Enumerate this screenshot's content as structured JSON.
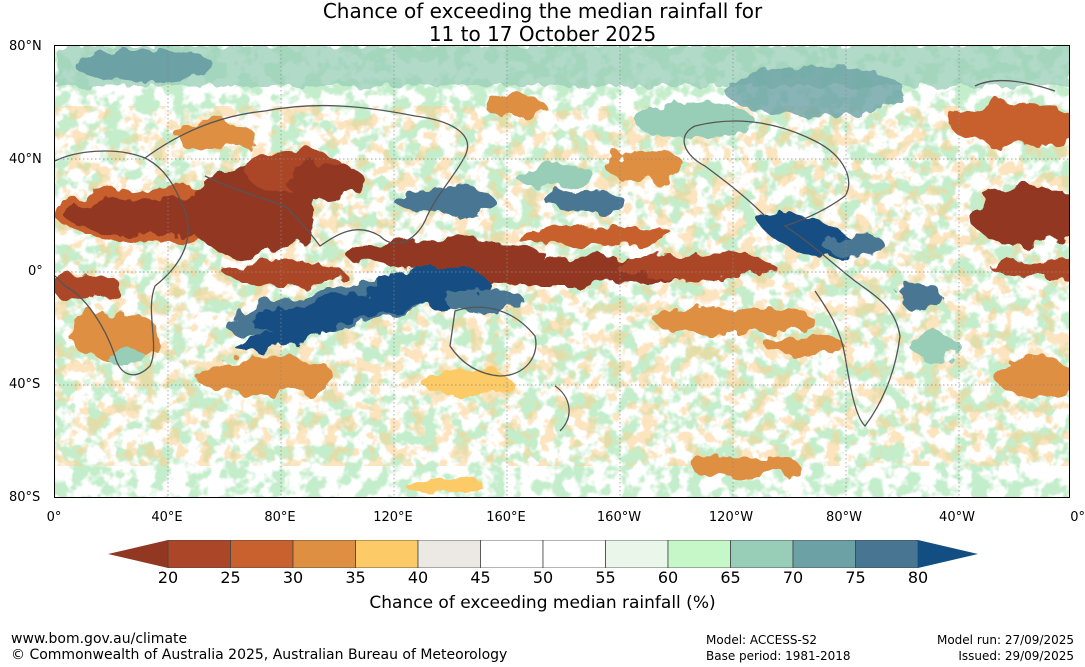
{
  "title": {
    "line1": "Chance of exceeding the median rainfall for",
    "line2": "11 to 17 October 2025"
  },
  "map": {
    "lat_labels": [
      "80°N",
      "40°N",
      "0°",
      "40°S",
      "80°S"
    ],
    "lon_labels": [
      "0°",
      "40°E",
      "80°E",
      "120°E",
      "160°E",
      "160°W",
      "120°W",
      "80°W",
      "40°W",
      "0°"
    ],
    "anomaly_regions": [
      {
        "id": "n-africa-arabia-dry",
        "percent": 25
      },
      {
        "id": "west-asia-dry",
        "percent": 25
      },
      {
        "id": "n-pacific-dry-band",
        "percent": 25
      },
      {
        "id": "eq-pacific-dry",
        "percent": 25
      },
      {
        "id": "n-atlantic-dry",
        "percent": 25
      },
      {
        "id": "indian-ocean-wet",
        "percent": 80
      },
      {
        "id": "maritime-continent-wet",
        "percent": 80
      },
      {
        "id": "central-america-wet",
        "percent": 80
      },
      {
        "id": "east-asia-wet",
        "percent": 75
      },
      {
        "id": "s-atlantic-wet",
        "percent": 75
      },
      {
        "id": "southern-ocean-dry",
        "percent": 35
      },
      {
        "id": "arctic-wet",
        "percent": 65
      }
    ]
  },
  "colorbar": {
    "ticks": [
      "20",
      "25",
      "30",
      "35",
      "40",
      "45",
      "50",
      "55",
      "60",
      "65",
      "70",
      "75",
      "80"
    ],
    "colors": [
      "#ab4628",
      "#c8612e",
      "#de8f42",
      "#fccb67",
      "#ece9e5",
      "#ffffff",
      "#ffffff",
      "#e9f6e9",
      "#c6f7c8",
      "#98cdb7",
      "#6ca1a5",
      "#487692"
    ],
    "low_color": "#923822",
    "high_color": "#134e83",
    "label": "Chance of exceeding median rainfall (%)"
  },
  "footer": {
    "website": "www.bom.gov.au/climate",
    "copyright": "© Commonwealth of Australia 2025, Australian Bureau of Meteorology",
    "model": "Model: ACCESS-S2",
    "base_period": "Base period: 1981-2018",
    "model_run": "Model run: 27/09/2025",
    "issued": "Issued: 29/09/2025"
  }
}
